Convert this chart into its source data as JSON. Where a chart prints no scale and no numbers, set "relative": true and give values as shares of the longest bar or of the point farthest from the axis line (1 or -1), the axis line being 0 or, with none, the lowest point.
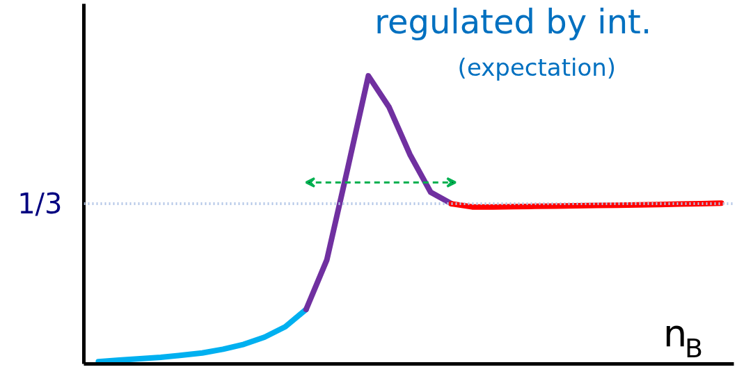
{
  "chart_data": {
    "type": "line",
    "relative": true,
    "xlabel": "n$_{B}$",
    "annotations": [
      "regulated by int.",
      "(expectation)"
    ],
    "categories": [
      null,
      null,
      null,
      null,
      null,
      null,
      null,
      null,
      null,
      null,
      null,
      null,
      null,
      null,
      null,
      null,
      null,
      null,
      null,
      null,
      null,
      null,
      null,
      null,
      null,
      null,
      null,
      null,
      null,
      null,
      null
    ],
    "series": [
      {
        "color": "#00b0f0",
        "values": [
          0.008,
          0.013,
          0.018,
          0.023,
          0.03,
          0.038,
          0.051,
          0.068,
          0.093,
          0.129,
          0.189,
          null,
          null,
          null,
          null,
          null,
          null,
          null,
          null,
          null,
          null,
          null,
          null,
          null,
          null,
          null,
          null,
          null,
          null,
          null,
          null
        ]
      },
      {
        "color": "#7030a0",
        "values": [
          null,
          null,
          null,
          null,
          null,
          null,
          null,
          null,
          null,
          null,
          0.189,
          0.361,
          0.677,
          1.0,
          0.891,
          0.727,
          0.596,
          0.556,
          null,
          null,
          null,
          null,
          null,
          null,
          null,
          null,
          null,
          null,
          null,
          null,
          null
        ]
      },
      {
        "color": "#ff0000",
        "values": [
          null,
          null,
          null,
          null,
          null,
          null,
          null,
          null,
          null,
          null,
          null,
          null,
          null,
          null,
          null,
          null,
          null,
          0.556,
          0.545,
          0.545,
          0.546,
          0.547,
          0.548,
          0.549,
          0.55,
          0.551,
          0.552,
          0.553,
          0.555,
          0.556,
          0.558
        ]
      }
    ],
    "ref_lines": [
      {
        "axis": "y",
        "value": 0.556,
        "label": "1/3",
        "color": "#b4c7e7",
        "line_style": "dotted"
      }
    ],
    "grid": false
  }
}
